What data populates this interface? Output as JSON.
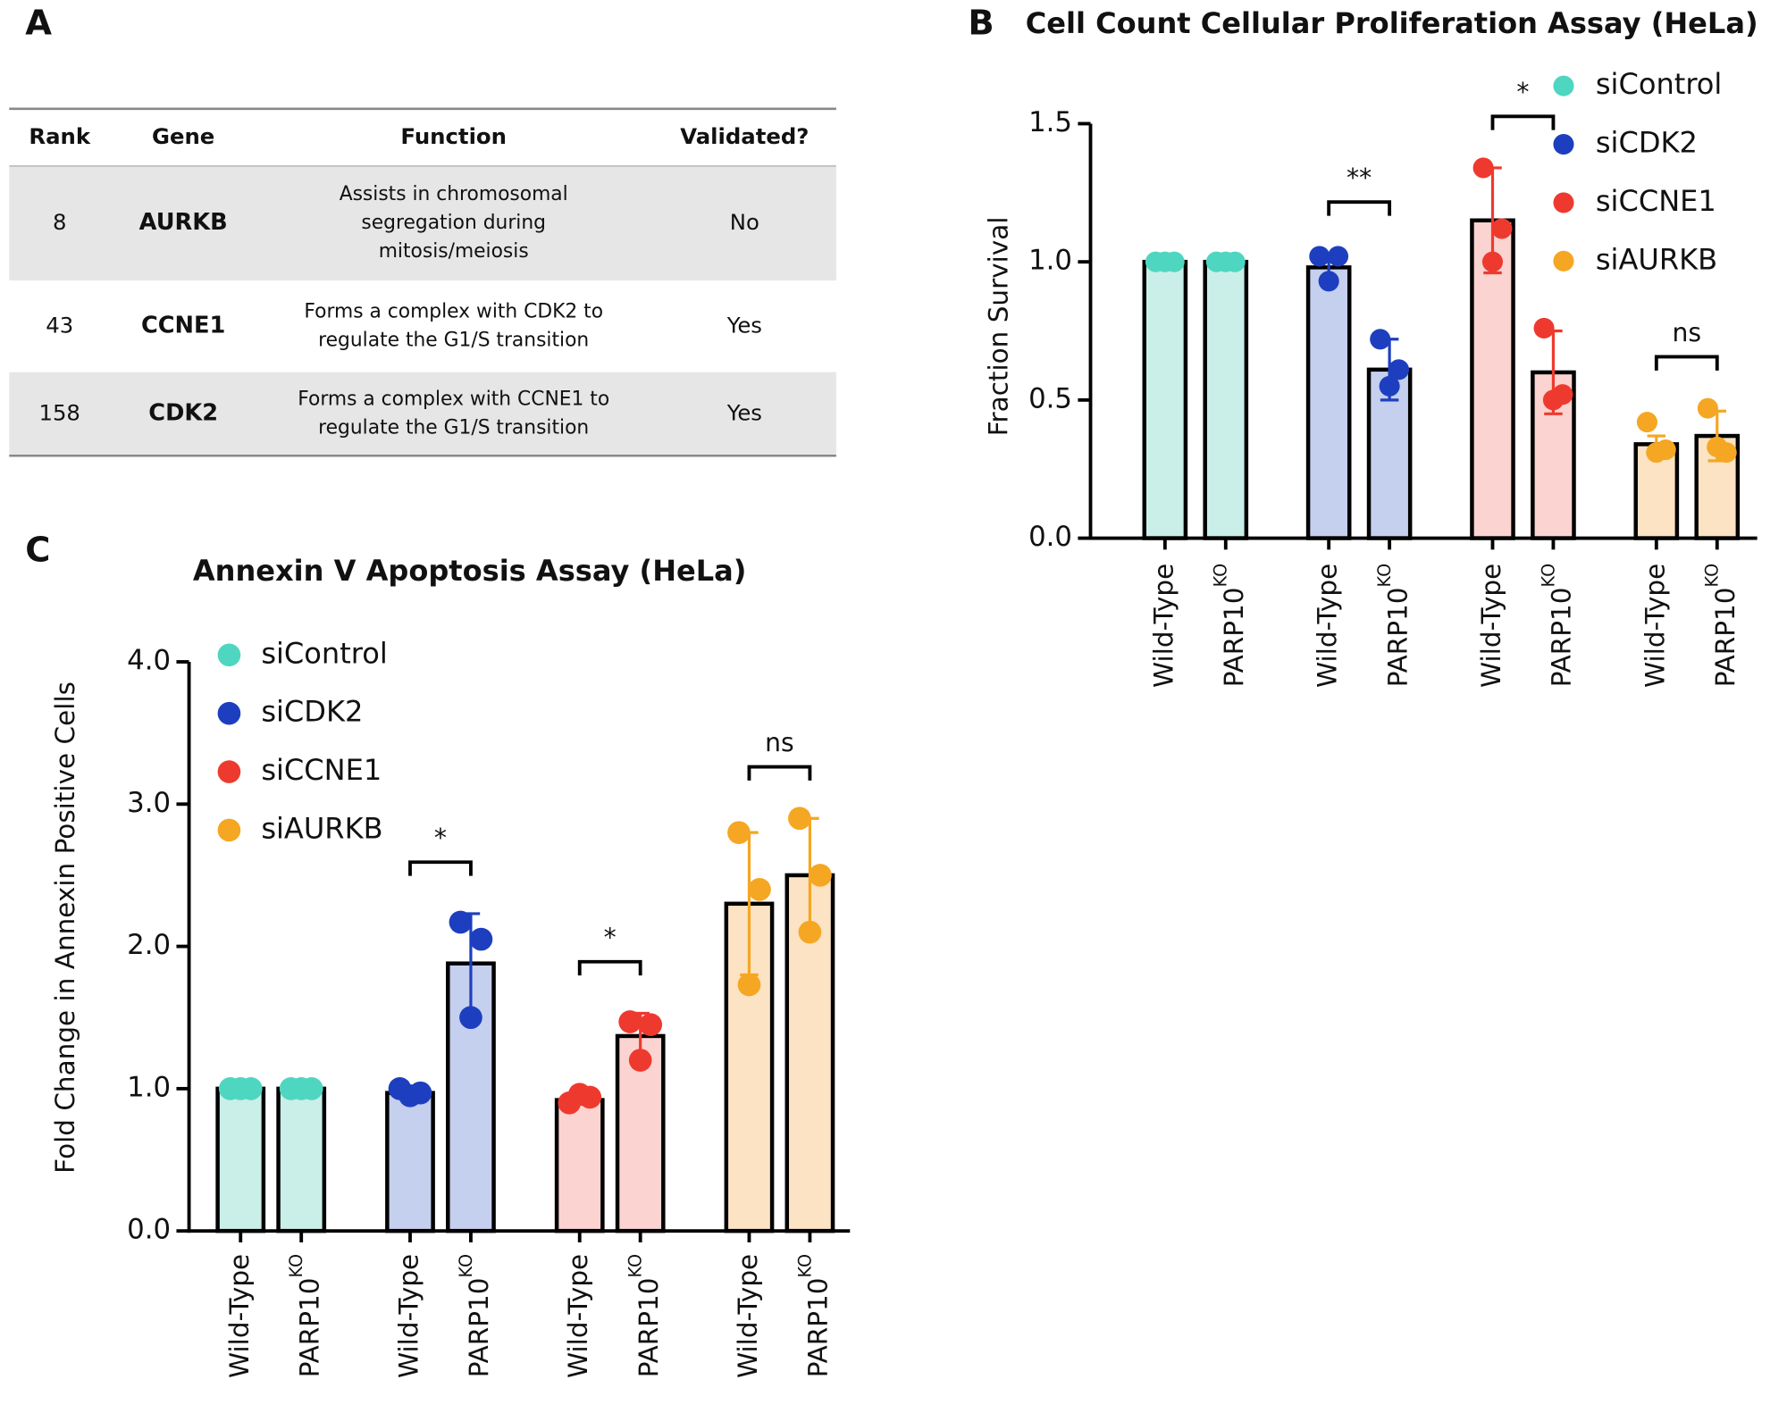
{
  "panels": [
    "A",
    "B",
    "C"
  ],
  "table": {
    "header": [
      "Rank",
      "Gene",
      "Function",
      "Validated?"
    ],
    "rows": [
      {
        "rank": 8,
        "gene": "AURKB",
        "gene_color": "#f5a623",
        "function": [
          "Assists in chromosomal",
          "segregation during",
          "mitosis/meiosis"
        ],
        "validated": "No"
      },
      {
        "rank": 43,
        "gene": "CCNE1",
        "gene_color": "#a0163a",
        "function": [
          "Forms a complex with CDK2 to",
          "regulate the G1/S transition"
        ],
        "validated": "Yes"
      },
      {
        "rank": 158,
        "gene": "CDK2",
        "gene_color": "#1d3fbf",
        "function": [
          "Forms a complex with CCNE1 to",
          "regulate the G1/S transition"
        ],
        "validated": "Yes"
      }
    ]
  },
  "chart_data": [
    {
      "type": "bar",
      "title": "Cell Count Cellular Proliferation Assay (HeLa)",
      "y_label": "Fraction Survival",
      "categories": [
        "Wild-Type",
        {
          "text": "PARP10",
          "sup": "KO"
        }
      ],
      "ylim": [
        0,
        1.5
      ],
      "yticks": [
        {
          "value": 0,
          "label": "0.0"
        },
        {
          "value": 0.5,
          "label": "0.5"
        },
        {
          "value": 1,
          "label": "1.0"
        },
        {
          "value": 1.5,
          "label": "1.5"
        }
      ],
      "legend": "upper right",
      "series": [
        {
          "name": "siControl",
          "color": "#4fd6c0",
          "bar_color": "#c9efe8",
          "values": [
            1.0,
            1.0
          ],
          "errors": [
            0,
            0
          ],
          "points": [
            [
              1,
              1,
              1
            ],
            [
              1,
              1,
              1
            ]
          ]
        },
        {
          "name": "siCDK2",
          "color": "#1d3fbf",
          "bar_color": "#c5cfee",
          "values": [
            0.98,
            0.61
          ],
          "errors": [
            0.05,
            0.11
          ],
          "points": [
            [
              1.02,
              0.93,
              1.02
            ],
            [
              0.72,
              0.55,
              0.61
            ]
          ],
          "significance": "**"
        },
        {
          "name": "siCCNE1",
          "color": "#ee3a2e",
          "bar_color": "#fbd3d0",
          "values": [
            1.15,
            0.6
          ],
          "errors": [
            0.19,
            0.15
          ],
          "points": [
            [
              1.34,
              1.0,
              1.12
            ],
            [
              0.76,
              0.5,
              0.52
            ]
          ],
          "significance": "*"
        },
        {
          "name": "siAURKB",
          "color": "#f5a623",
          "bar_color": "#fbe3c3",
          "values": [
            0.34,
            0.37
          ],
          "errors": [
            0.03,
            0.09
          ],
          "points": [
            [
              0.42,
              0.31,
              0.32
            ],
            [
              0.47,
              0.33,
              0.31
            ]
          ],
          "significance": "ns"
        }
      ]
    },
    {
      "type": "bar",
      "title": "Annexin V Apoptosis Assay (HeLa)",
      "y_label": "Fold Change in Annexin Positive Cells",
      "categories": [
        "Wild-Type",
        {
          "text": "PARP10",
          "sup": "KO"
        }
      ],
      "ylim": [
        0,
        4
      ],
      "yticks": [
        {
          "value": 0,
          "label": "0.0"
        },
        {
          "value": 1,
          "label": "1.0"
        },
        {
          "value": 2,
          "label": "2.0"
        },
        {
          "value": 3,
          "label": "3.0"
        },
        {
          "value": 4,
          "label": "4.0"
        }
      ],
      "legend": "upper left",
      "series": [
        {
          "name": "siControl",
          "color": "#4fd6c0",
          "bar_color": "#c9efe8",
          "values": [
            1.0,
            1.0
          ],
          "errors": [
            0,
            0
          ],
          "points": [
            [
              1,
              1,
              1
            ],
            [
              1,
              1,
              1
            ]
          ]
        },
        {
          "name": "siCDK2",
          "color": "#1d3fbf",
          "bar_color": "#c5cfee",
          "values": [
            0.97,
            1.88
          ],
          "errors": [
            0.02,
            0.35
          ],
          "points": [
            [
              1.0,
              0.95,
              0.97
            ],
            [
              2.17,
              1.5,
              2.05
            ]
          ],
          "significance": "*"
        },
        {
          "name": "siCCNE1",
          "color": "#ee3a2e",
          "bar_color": "#fbd3d0",
          "values": [
            0.92,
            1.37
          ],
          "errors": [
            0.03,
            0.16
          ],
          "points": [
            [
              0.9,
              0.96,
              0.94
            ],
            [
              1.47,
              1.2,
              1.45
            ]
          ],
          "significance": "*"
        },
        {
          "name": "siAURKB",
          "color": "#f5a623",
          "bar_color": "#fbe3c3",
          "values": [
            2.3,
            2.5
          ],
          "errors": [
            0.5,
            0.4
          ],
          "points": [
            [
              2.8,
              1.73,
              2.4
            ],
            [
              2.9,
              2.1,
              2.5
            ]
          ],
          "significance": "ns"
        }
      ]
    }
  ]
}
